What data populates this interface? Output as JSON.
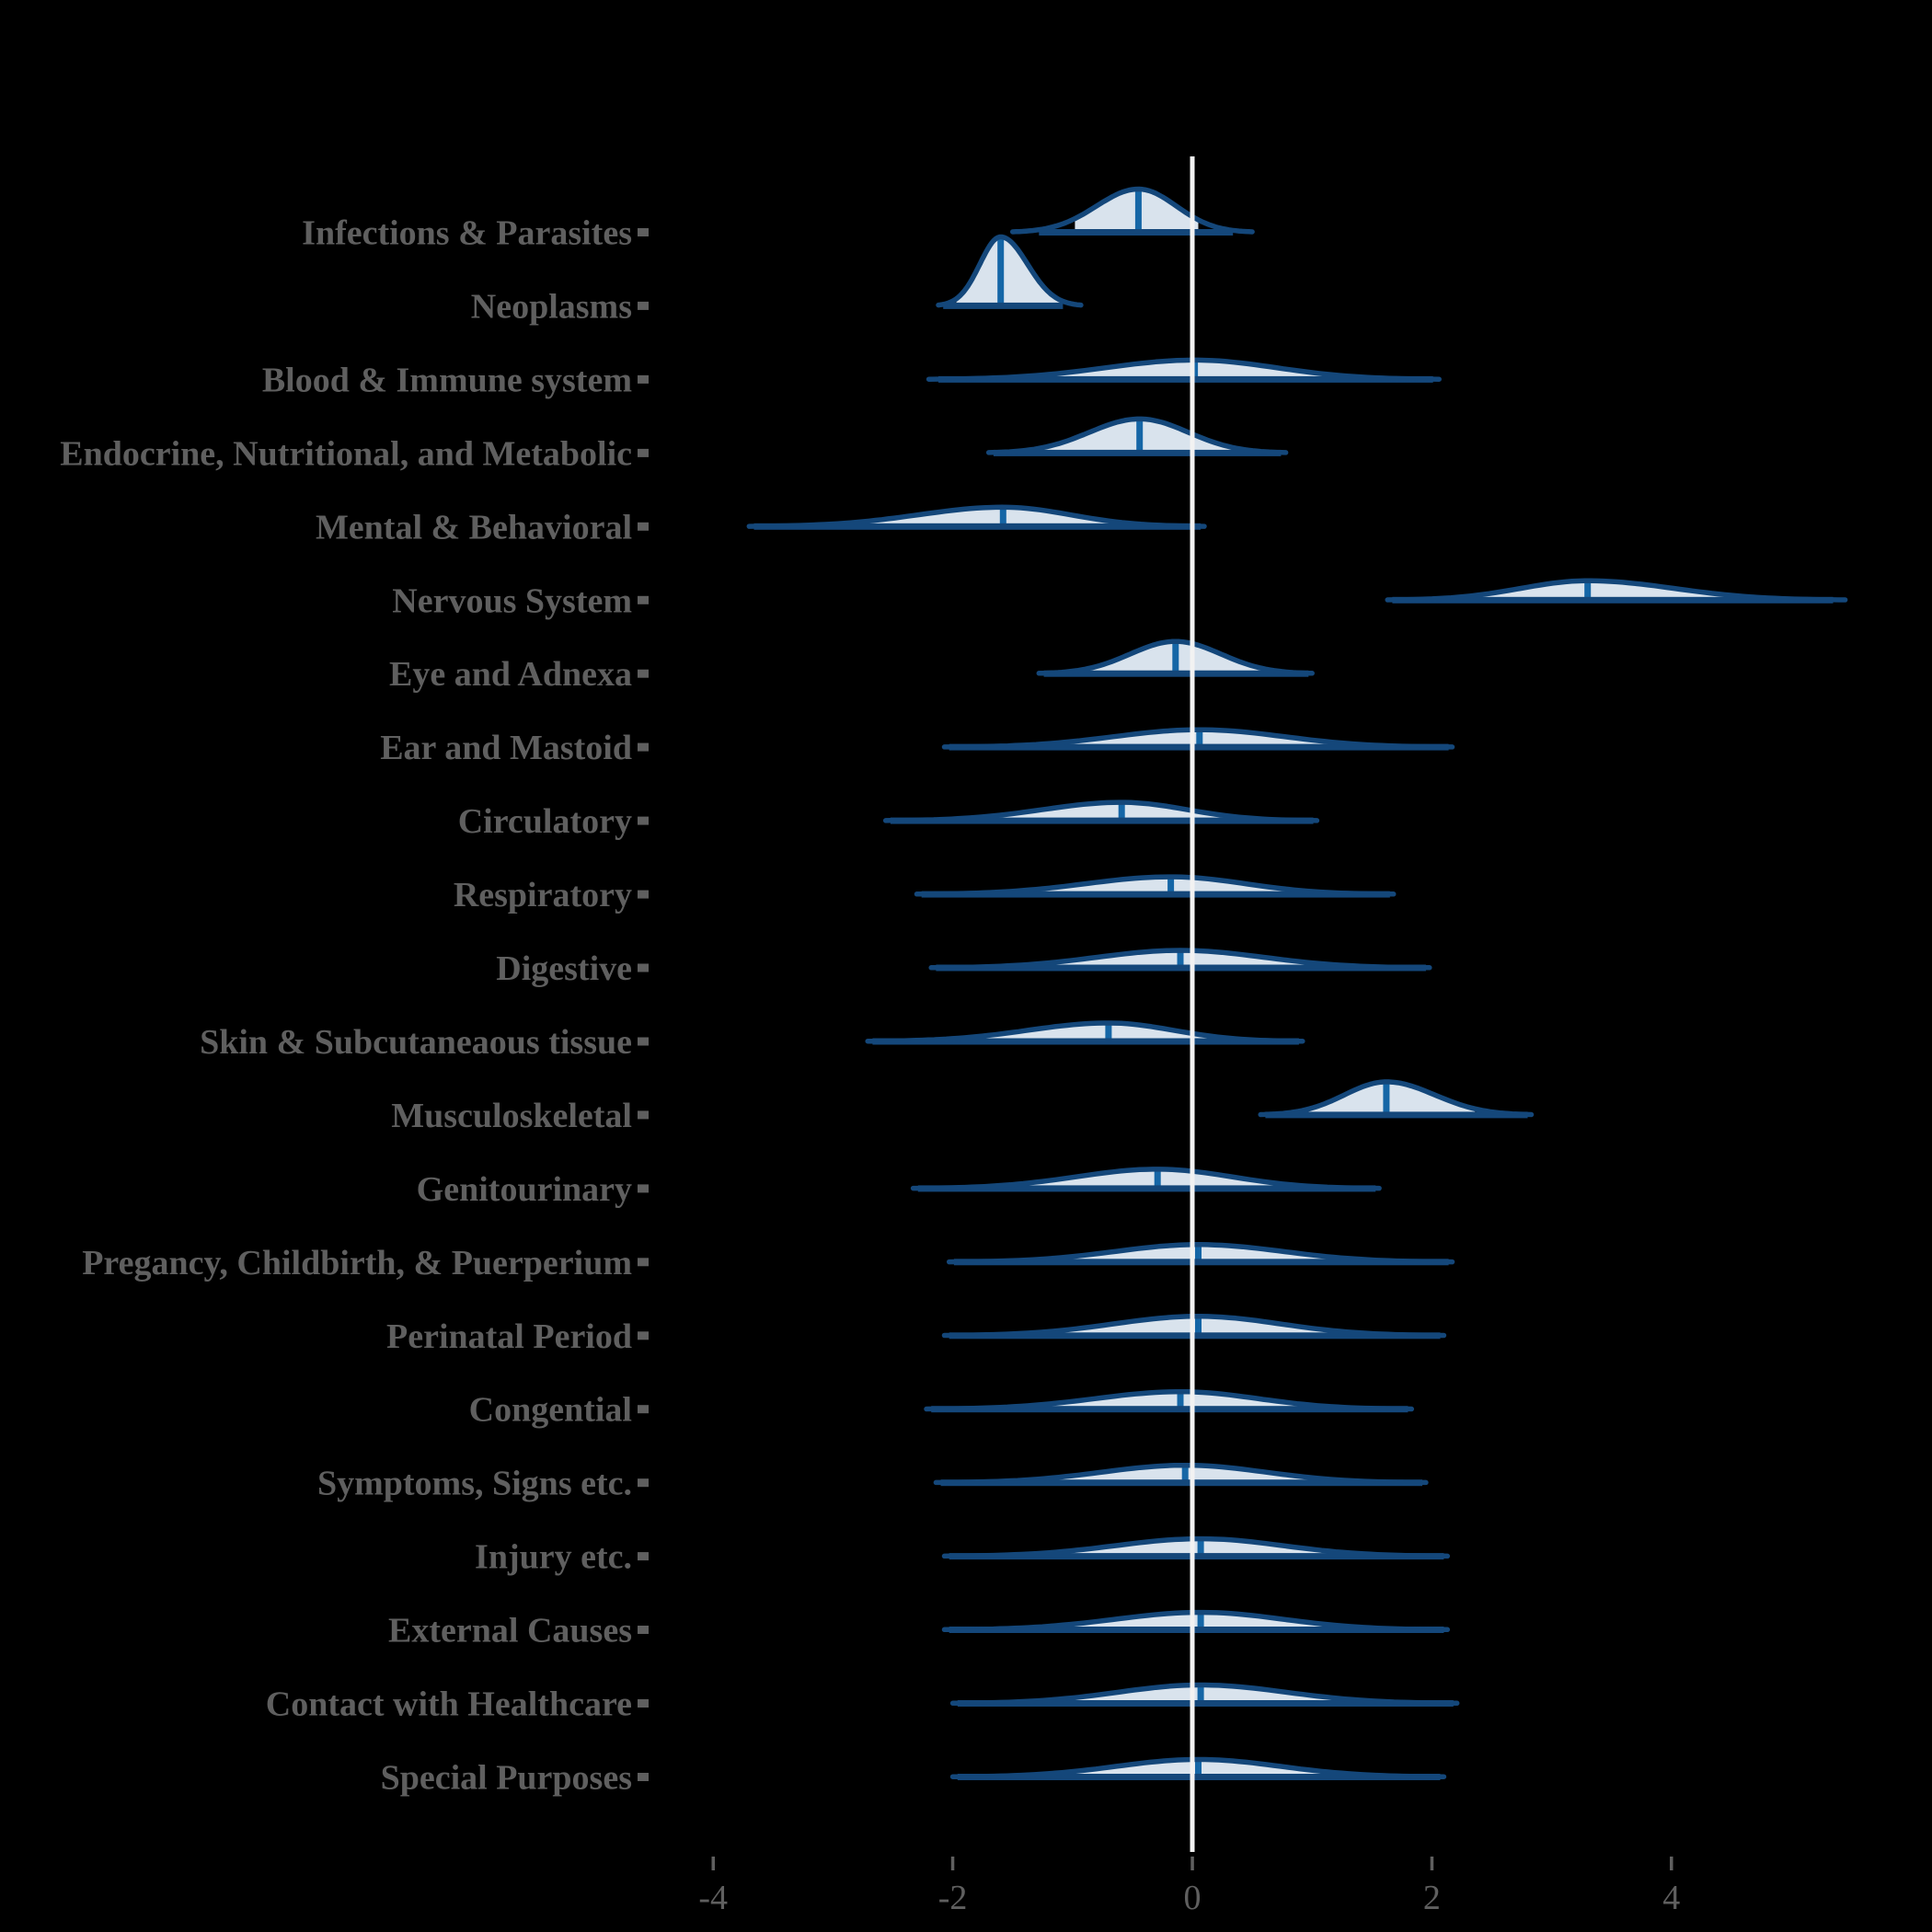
{
  "chart_data": {
    "type": "area",
    "variant": "ridgeline-halfeye-density",
    "title": "",
    "xlabel": "",
    "ylabel": "",
    "xlim": [
      -5.6,
      5.7
    ],
    "x_tick_values": [
      -4,
      -2,
      0,
      2,
      4
    ],
    "x_tick_labels": [
      "-4",
      "-2",
      "0",
      "2",
      "4"
    ],
    "reference_line_x": 0,
    "grid": false,
    "legend": "none",
    "categories": [
      "Infections & Parasites",
      "Neoplasms",
      "Blood & Immune system",
      "Endocrine, Nutritional, and Metabolic",
      "Mental & Behavioral",
      "Nervous System",
      "Eye and Adnexa",
      "Ear and Mastoid",
      "Circulatory",
      "Respiratory",
      "Digestive",
      "Skin & Subcutaneaous tissue",
      "Musculoskeletal",
      "Genitourinary",
      "Pregancy, Childbirth, & Puerperium",
      "Perinatal Period",
      "Congential",
      "Symptoms, Signs etc.",
      "Injury etc.",
      "External Causes",
      "Contact with Healthcare",
      "Special Purposes"
    ],
    "series": [
      {
        "label": "Infections & Parasites",
        "median": -0.45,
        "interval": [
          -1.28,
          0.34
        ],
        "fill_interval": [
          -0.98,
          0.05
        ],
        "curve_range": [
          -1.5,
          0.5
        ],
        "peak_height": 47
      },
      {
        "label": "Neoplasms",
        "median": -1.6,
        "interval": [
          -2.08,
          -1.08
        ],
        "fill_interval": [
          -1.97,
          -1.1
        ],
        "curve_range": [
          -2.12,
          -0.93
        ],
        "peak_height": 75
      },
      {
        "label": "Blood & Immune system",
        "median": 0.02,
        "interval": [
          -2.12,
          2.01
        ],
        "fill_interval": [
          -1.35,
          1.3
        ],
        "curve_range": [
          -2.2,
          2.06
        ],
        "peak_height": 21
      },
      {
        "label": "Endocrine, Nutritional, and Metabolic",
        "median": -0.44,
        "interval": [
          -1.66,
          0.74
        ],
        "fill_interval": [
          -1.24,
          0.36
        ],
        "curve_range": [
          -1.7,
          0.78
        ],
        "peak_height": 37
      },
      {
        "label": "Mental & Behavioral",
        "median": -1.58,
        "interval": [
          -3.66,
          0.07
        ],
        "fill_interval": [
          -2.94,
          -0.43
        ],
        "curve_range": [
          -3.7,
          0.1
        ],
        "peak_height": 21
      },
      {
        "label": "Nervous System",
        "median": 3.3,
        "interval": [
          1.67,
          5.35
        ],
        "fill_interval": [
          2.13,
          4.45
        ],
        "curve_range": [
          1.63,
          5.45
        ],
        "peak_height": 21
      },
      {
        "label": "Eye and Adnexa",
        "median": -0.14,
        "interval": [
          -1.24,
          0.97
        ],
        "fill_interval": [
          -0.89,
          0.62
        ],
        "curve_range": [
          -1.28,
          1.0
        ],
        "peak_height": 35
      },
      {
        "label": "Ear and Mastoid",
        "median": 0.06,
        "interval": [
          -2.03,
          2.14
        ],
        "fill_interval": [
          -1.2,
          1.38
        ],
        "curve_range": [
          -2.07,
          2.17
        ],
        "peak_height": 19
      },
      {
        "label": "Circulatory",
        "median": -0.59,
        "interval": [
          -2.52,
          1.01
        ],
        "fill_interval": [
          -1.73,
          0.44
        ],
        "curve_range": [
          -2.56,
          1.04
        ],
        "peak_height": 20
      },
      {
        "label": "Respiratory",
        "median": -0.18,
        "interval": [
          -2.26,
          1.65
        ],
        "fill_interval": [
          -1.42,
          1.15
        ],
        "curve_range": [
          -2.3,
          1.68
        ],
        "peak_height": 19
      },
      {
        "label": "Digestive",
        "median": -0.1,
        "interval": [
          -2.14,
          1.95
        ],
        "fill_interval": [
          -1.38,
          1.19
        ],
        "curve_range": [
          -2.18,
          1.98
        ],
        "peak_height": 19
      },
      {
        "label": "Skin & Subcutaneaous tissue",
        "median": -0.7,
        "interval": [
          -2.67,
          0.89
        ],
        "fill_interval": [
          -1.95,
          0.4
        ],
        "curve_range": [
          -2.71,
          0.92
        ],
        "peak_height": 20
      },
      {
        "label": "Musculoskeletal",
        "median": 1.62,
        "interval": [
          0.61,
          2.8
        ],
        "fill_interval": [
          0.97,
          2.36
        ],
        "curve_range": [
          0.57,
          2.83
        ],
        "peak_height": 36
      },
      {
        "label": "Genitourinary",
        "median": -0.29,
        "interval": [
          -2.29,
          1.53
        ],
        "fill_interval": [
          -1.53,
          0.97
        ],
        "curve_range": [
          -2.33,
          1.56
        ],
        "peak_height": 21
      },
      {
        "label": "Pregancy, Childbirth, & Puerperium",
        "median": 0.05,
        "interval": [
          -1.99,
          2.14
        ],
        "fill_interval": [
          -1.23,
          1.35
        ],
        "curve_range": [
          -2.03,
          2.17
        ],
        "peak_height": 19
      },
      {
        "label": "Perinatal Period",
        "median": 0.05,
        "interval": [
          -2.03,
          2.07
        ],
        "fill_interval": [
          -1.31,
          1.31
        ],
        "curve_range": [
          -2.07,
          2.1
        ],
        "peak_height": 21
      },
      {
        "label": "Congential",
        "median": -0.1,
        "interval": [
          -2.18,
          1.8
        ],
        "fill_interval": [
          -1.42,
          1.12
        ],
        "curve_range": [
          -2.22,
          1.83
        ],
        "peak_height": 19
      },
      {
        "label": "Symptoms, Signs etc.",
        "median": -0.06,
        "interval": [
          -2.1,
          1.92
        ],
        "fill_interval": [
          -1.35,
          1.05
        ],
        "curve_range": [
          -2.14,
          1.95
        ],
        "peak_height": 19
      },
      {
        "label": "Injury etc.",
        "median": 0.07,
        "interval": [
          -2.03,
          2.1
        ],
        "fill_interval": [
          -1.23,
          1.31
        ],
        "curve_range": [
          -2.07,
          2.13
        ],
        "peak_height": 19
      },
      {
        "label": "External Causes",
        "median": 0.07,
        "interval": [
          -2.03,
          2.1
        ],
        "fill_interval": [
          -1.24,
          1.33
        ],
        "curve_range": [
          -2.07,
          2.13
        ],
        "peak_height": 19
      },
      {
        "label": "Contact with Healthcare",
        "median": 0.07,
        "interval": [
          -1.96,
          2.18
        ],
        "fill_interval": [
          -1.2,
          1.38
        ],
        "curve_range": [
          -2.0,
          2.21
        ],
        "peak_height": 20
      },
      {
        "label": "Special Purposes",
        "median": 0.05,
        "interval": [
          -1.96,
          2.07
        ],
        "fill_interval": [
          -1.2,
          1.31
        ],
        "curve_range": [
          -2.0,
          2.1
        ],
        "peak_height": 19
      }
    ]
  },
  "colors": {
    "background": "#000000",
    "density_outline": "#14477a",
    "density_fill": "#d9e3ed",
    "median_line": "#1566a6",
    "interval_bar": "#14477a",
    "reference_line": "#f2f2f2",
    "axis_text": "#5f5f5f",
    "axis_tick": "#5f5f5f"
  }
}
